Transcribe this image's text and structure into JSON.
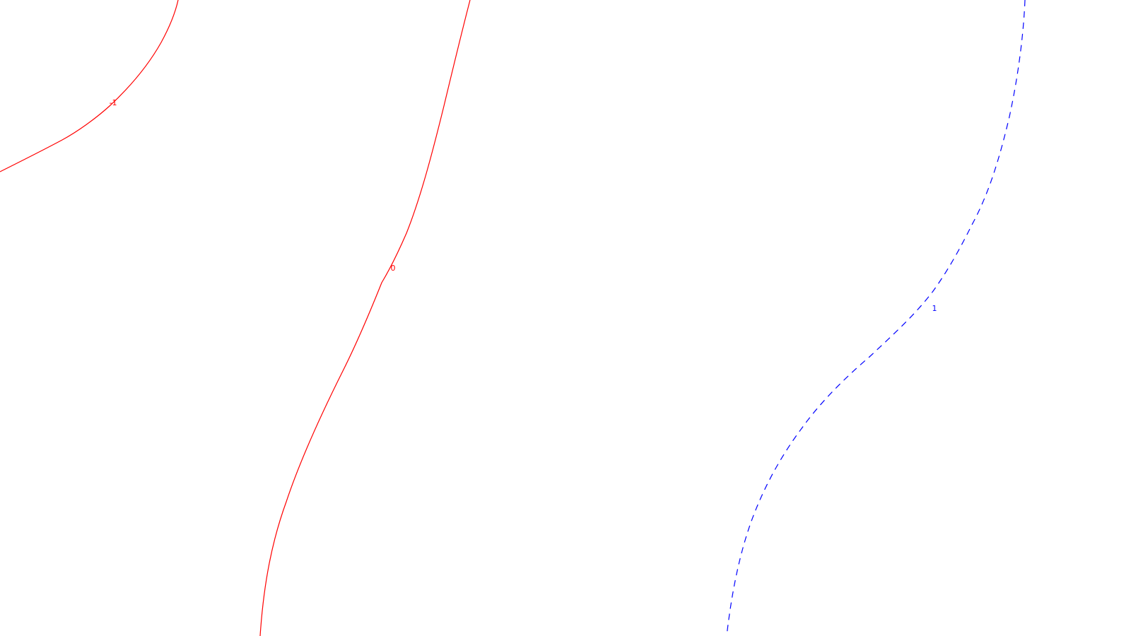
{
  "map": {
    "contours": [
      {
        "id": "minus1",
        "value": -1,
        "label": "-1",
        "color": "#ff0000",
        "style": "solid"
      },
      {
        "id": "zero",
        "value": 0,
        "label": "0",
        "color": "#ff0000",
        "style": "solid"
      },
      {
        "id": "plus1",
        "value": 1,
        "label": "1",
        "color": "#0000ff",
        "style": "dashed"
      }
    ]
  }
}
